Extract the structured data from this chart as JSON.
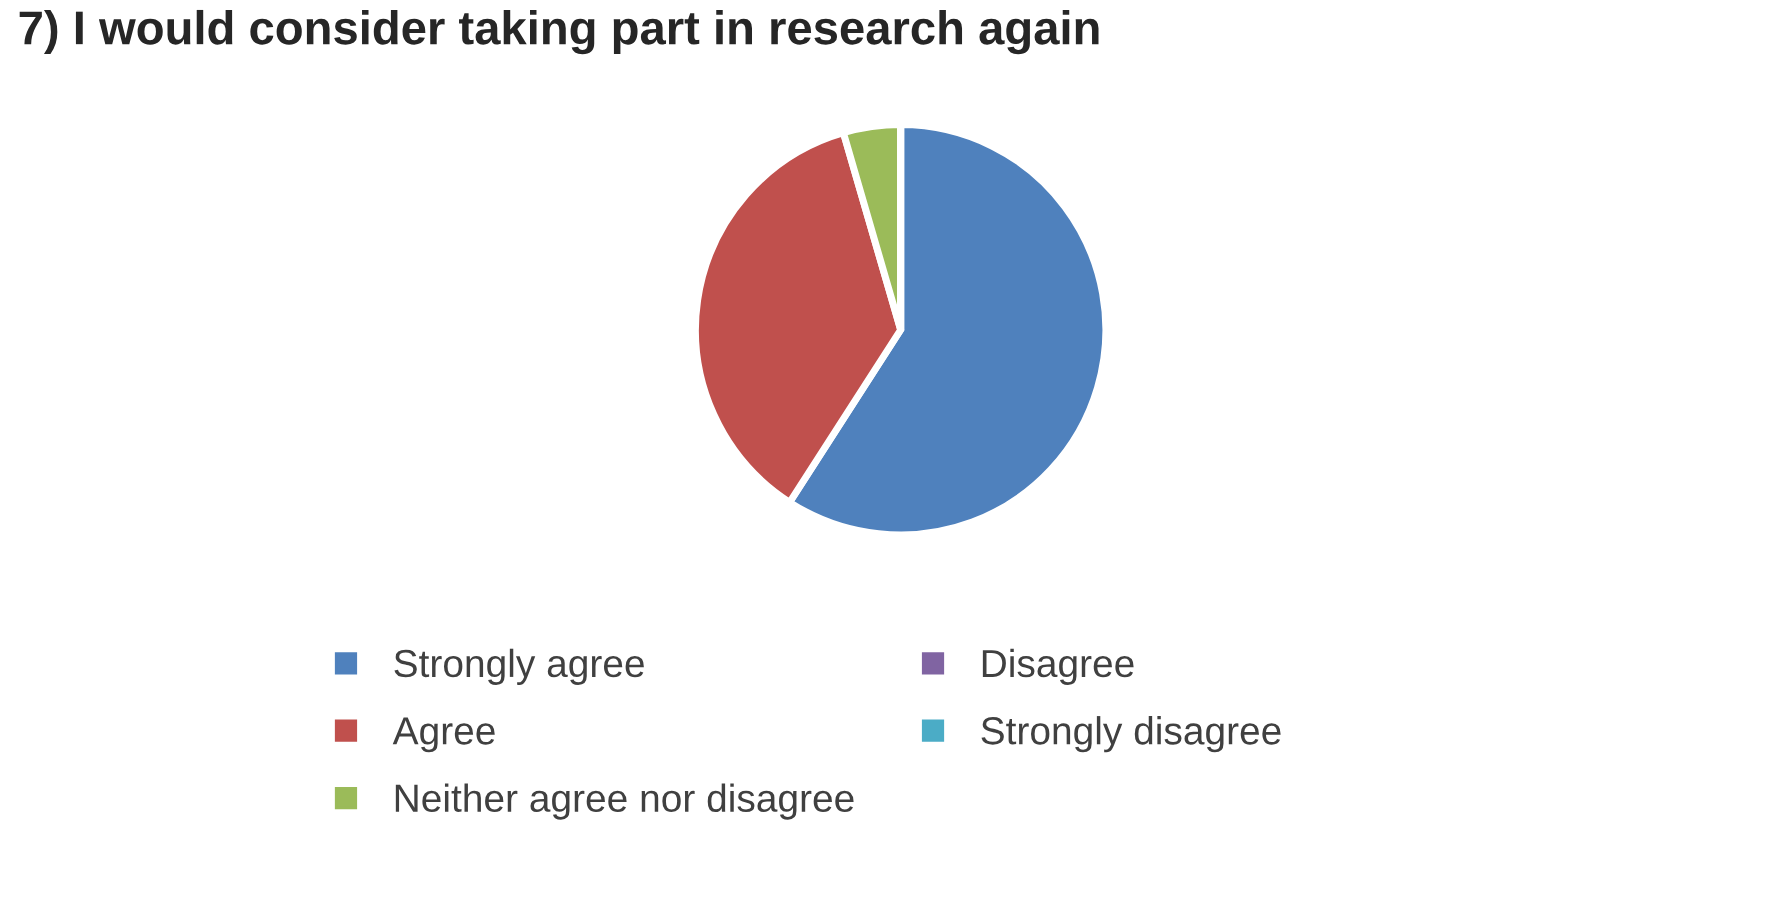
{
  "chart_data": {
    "type": "pie",
    "title": "7) I would consider taking part in research again",
    "categories": [
      "Strongly agree",
      "Agree",
      "Neither agree nor disagree",
      "Disagree",
      "Strongly disagree"
    ],
    "values": [
      59.1,
      36.4,
      4.5,
      0,
      0
    ],
    "colors": [
      "#4f81bd",
      "#c0504d",
      "#9bbb59",
      "#8064a2",
      "#4bacc6"
    ],
    "legend": "bottom"
  }
}
